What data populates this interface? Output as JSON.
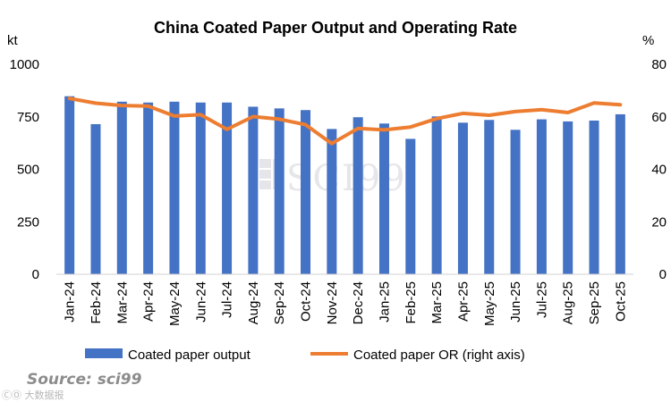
{
  "chart_data": {
    "type": "bar",
    "title": "China Coated Paper Output and Operating Rate",
    "categories": [
      "Jan-24",
      "Feb-24",
      "Mar-24",
      "Apr-24",
      "May-24",
      "Jun-24",
      "Jul-24",
      "Aug-24",
      "Sep-24",
      "Oct-24",
      "Nov-24",
      "Dec-24",
      "Jan-25",
      "Feb-25",
      "Mar-25",
      "Apr-25",
      "May-25",
      "Jun-25",
      "Jul-25",
      "Aug-25",
      "Sep-25",
      "Oct-25"
    ],
    "series": [
      {
        "name": "Coated paper output",
        "type": "bar",
        "axis": "left",
        "color": "#4472C4",
        "values": [
          848,
          715,
          822,
          818,
          822,
          818,
          818,
          798,
          790,
          782,
          692,
          748,
          718,
          645,
          752,
          722,
          735,
          688,
          738,
          728,
          732,
          762
        ]
      },
      {
        "name": "Coated paper OR (right axis)",
        "type": "line",
        "axis": "right",
        "color": "#ED7D31",
        "values": [
          67,
          65.2,
          64.3,
          64.1,
          60.3,
          60.8,
          55.2,
          60.1,
          59.1,
          57.0,
          49.8,
          55.6,
          55.0,
          56.1,
          59.3,
          61.3,
          60.6,
          62.0,
          62.7,
          61.6,
          65.3,
          64.6
        ]
      }
    ],
    "left_axis": {
      "label": "kt",
      "min": 0,
      "max": 1000,
      "ticks": [
        0,
        250,
        500,
        750,
        1000
      ]
    },
    "right_axis": {
      "label": "%",
      "min": 0,
      "max": 80,
      "ticks": [
        0,
        20,
        40,
        60,
        80
      ]
    },
    "legend_position": "bottom",
    "grid": false
  },
  "source_text": "Source: sci99",
  "watermark_text": "SCI99",
  "corner_mark_text": "ⒸⓄ 大数据报"
}
